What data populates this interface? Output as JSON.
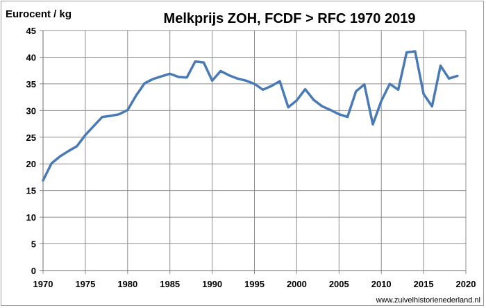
{
  "chart_data": {
    "type": "line",
    "title": "Melkprijs ZOH, FCDF > RFC 1970 2019",
    "ylabel": "Eurocent / kg",
    "xlabel": "",
    "xlim": [
      1970,
      2020
    ],
    "ylim": [
      0,
      45
    ],
    "x_ticks": [
      "1970",
      "1975",
      "1980",
      "1985",
      "1990",
      "1995",
      "2000",
      "2005",
      "2010",
      "2015",
      "2020"
    ],
    "y_ticks": [
      "0",
      "5",
      "10",
      "15",
      "20",
      "25",
      "30",
      "35",
      "40",
      "45"
    ],
    "grid": "vertical and horizontal",
    "legend": "none",
    "series_color": "#4a7ab5",
    "series": [
      {
        "x": [
          1970,
          1971,
          1972,
          1973,
          1974,
          1975,
          1976,
          1977,
          1978,
          1979,
          1980,
          1981,
          1982,
          1983,
          1984,
          1985,
          1986,
          1987,
          1988,
          1989,
          1990,
          1991,
          1992,
          1993,
          1994,
          1995,
          1996,
          1997,
          1998,
          1999,
          2000,
          2001,
          2002,
          2003,
          2004,
          2005,
          2006,
          2007,
          2008,
          2009,
          2010,
          2011,
          2012,
          2013,
          2014,
          2015,
          2016,
          2017,
          2018,
          2019
        ],
        "values": [
          16.9,
          20.1,
          21.4,
          22.4,
          23.3,
          25.4,
          27.1,
          28.8,
          29.0,
          29.3,
          30.1,
          32.8,
          35.1,
          35.9,
          36.4,
          36.9,
          36.3,
          36.2,
          39.2,
          39.0,
          35.6,
          37.4,
          36.6,
          36.0,
          35.6,
          35.0,
          33.9,
          34.6,
          35.5,
          30.6,
          31.9,
          34.0,
          32.0,
          30.8,
          30.1,
          29.3,
          28.8,
          33.6,
          34.9,
          27.4,
          31.8,
          35.0,
          33.9,
          40.9,
          41.1,
          33.1,
          30.8,
          38.4,
          36.0,
          36.5
        ]
      }
    ]
  },
  "credit": "www.zuivelhistorienederland.nl"
}
